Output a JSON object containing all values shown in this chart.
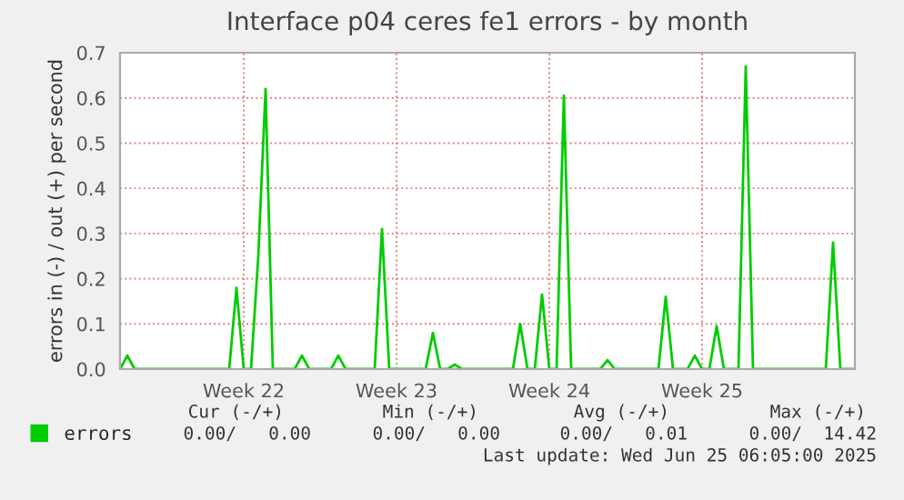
{
  "chart_data": {
    "type": "line",
    "title": "Interface p04 ceres fe1 errors - by month",
    "ylabel": "errors in (-) / out (+) per second",
    "categories": [
      null,
      null,
      null,
      null,
      null,
      null,
      null,
      null,
      null,
      null,
      null,
      null,
      null,
      null,
      null,
      null,
      null,
      "Week 22",
      null,
      null,
      null,
      null,
      null,
      null,
      null,
      null,
      null,
      null,
      null,
      null,
      null,
      null,
      null,
      null,
      null,
      null,
      null,
      null,
      "Week 23",
      null,
      null,
      null,
      null,
      null,
      null,
      null,
      null,
      null,
      null,
      null,
      null,
      null,
      null,
      null,
      null,
      null,
      null,
      null,
      null,
      "Week 24",
      null,
      null,
      null,
      null,
      null,
      null,
      null,
      null,
      null,
      null,
      null,
      null,
      null,
      null,
      null,
      null,
      null,
      null,
      null,
      null,
      "Week 25",
      null,
      null,
      null,
      null,
      null,
      null,
      null,
      null,
      null,
      null,
      null,
      null,
      null,
      null,
      null,
      null,
      null,
      null,
      null,
      null,
      null
    ],
    "series": [
      {
        "name": "errors",
        "color": "#00cc00",
        "values": [
          0,
          0.03,
          0,
          0,
          0,
          0,
          0,
          0,
          0,
          0,
          0,
          0,
          0,
          0,
          0,
          0,
          0.18,
          0,
          0,
          0.25,
          0.62,
          0,
          0,
          0,
          0,
          0.03,
          0,
          0,
          0,
          0,
          0.03,
          0,
          0,
          0,
          0,
          0,
          0.31,
          0,
          0,
          0,
          0,
          0,
          0,
          0.08,
          0,
          0,
          0.01,
          0,
          0,
          0,
          0,
          0,
          0,
          0,
          0,
          0.1,
          0,
          0,
          0.165,
          0,
          0,
          0.605,
          0,
          0,
          0,
          0,
          0,
          0.02,
          0,
          0,
          0,
          0,
          0,
          0,
          0,
          0.16,
          0,
          0,
          0,
          0.03,
          0,
          0,
          0.095,
          0,
          0,
          0,
          0.67,
          0,
          0,
          0,
          0,
          0,
          0,
          0,
          0,
          0,
          0,
          0,
          0.28,
          0,
          0,
          0
        ]
      }
    ],
    "ylim": [
      0,
      0.7
    ],
    "yticks": [
      {
        "value": 0,
        "label": "0.0"
      },
      {
        "value": 0.1,
        "label": "0.1"
      },
      {
        "value": 0.2,
        "label": "0.2"
      },
      {
        "value": 0.3,
        "label": "0.3"
      },
      {
        "value": 0.4,
        "label": "0.4"
      },
      {
        "value": 0.5,
        "label": "0.5"
      },
      {
        "value": 0.6,
        "label": "0.6"
      },
      {
        "value": 0.7,
        "label": "0.7"
      }
    ],
    "grid": true,
    "legend": "bottom left",
    "line_style": "solid",
    "marker": "none",
    "annotations": [
      "Cur (-/+)",
      "Min (-/+)",
      "Avg (-/+)",
      "Max (-/+)",
      "0.00/   0.00",
      "0.00/   0.00",
      "0.00/   0.01",
      "0.00/  14.42",
      "Last update: Wed Jun 25 06:05:00 2025"
    ]
  }
}
